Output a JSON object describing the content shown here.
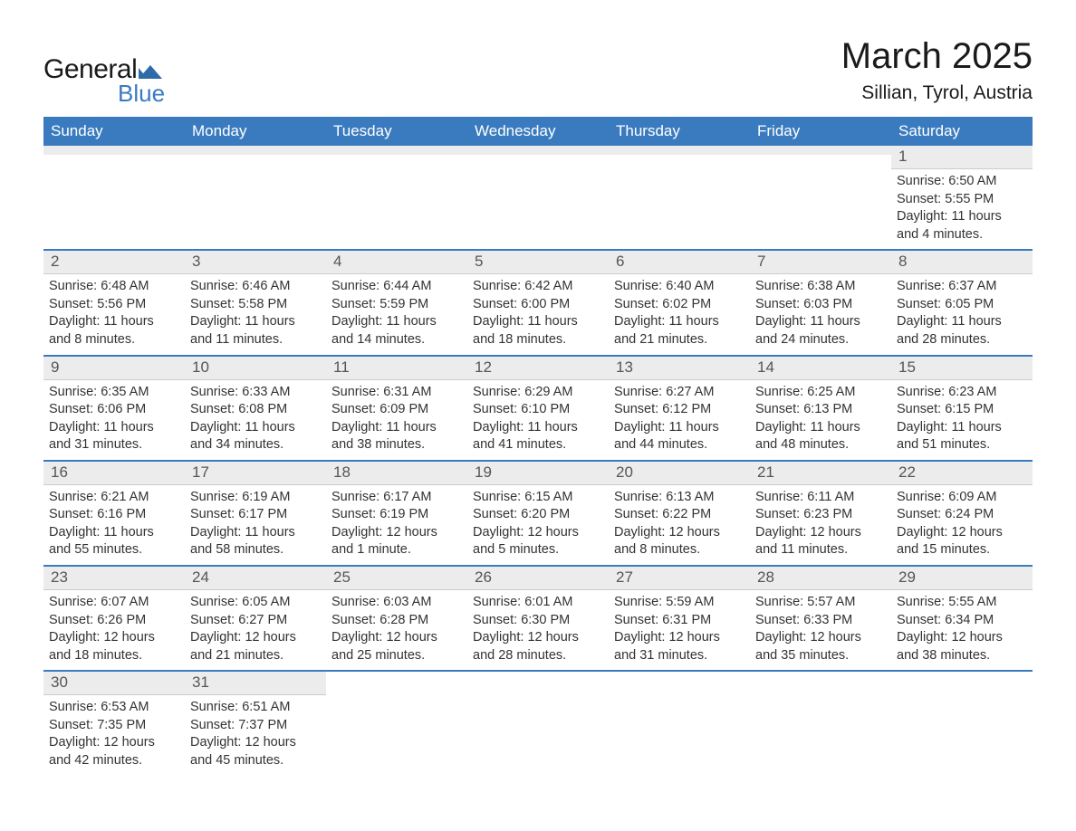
{
  "logo": {
    "text_general": "General",
    "text_blue": "Blue",
    "mark_color": "#2f6aa8"
  },
  "title": "March 2025",
  "location": "Sillian, Tyrol, Austria",
  "colors": {
    "header_bg": "#3a7bbf",
    "header_text": "#ffffff",
    "daynum_bg": "#ececec",
    "daynum_text": "#555555",
    "body_text": "#333333",
    "week_border": "#3a7bbf",
    "page_bg": "#ffffff"
  },
  "typography": {
    "title_fontsize": 40,
    "location_fontsize": 21,
    "weekday_fontsize": 17,
    "daynum_fontsize": 17,
    "body_fontsize": 14.5
  },
  "weekdays": [
    "Sunday",
    "Monday",
    "Tuesday",
    "Wednesday",
    "Thursday",
    "Friday",
    "Saturday"
  ],
  "weeks": [
    [
      null,
      null,
      null,
      null,
      null,
      null,
      {
        "n": "1",
        "sr": "Sunrise: 6:50 AM",
        "ss": "Sunset: 5:55 PM",
        "d1": "Daylight: 11 hours",
        "d2": "and 4 minutes."
      }
    ],
    [
      {
        "n": "2",
        "sr": "Sunrise: 6:48 AM",
        "ss": "Sunset: 5:56 PM",
        "d1": "Daylight: 11 hours",
        "d2": "and 8 minutes."
      },
      {
        "n": "3",
        "sr": "Sunrise: 6:46 AM",
        "ss": "Sunset: 5:58 PM",
        "d1": "Daylight: 11 hours",
        "d2": "and 11 minutes."
      },
      {
        "n": "4",
        "sr": "Sunrise: 6:44 AM",
        "ss": "Sunset: 5:59 PM",
        "d1": "Daylight: 11 hours",
        "d2": "and 14 minutes."
      },
      {
        "n": "5",
        "sr": "Sunrise: 6:42 AM",
        "ss": "Sunset: 6:00 PM",
        "d1": "Daylight: 11 hours",
        "d2": "and 18 minutes."
      },
      {
        "n": "6",
        "sr": "Sunrise: 6:40 AM",
        "ss": "Sunset: 6:02 PM",
        "d1": "Daylight: 11 hours",
        "d2": "and 21 minutes."
      },
      {
        "n": "7",
        "sr": "Sunrise: 6:38 AM",
        "ss": "Sunset: 6:03 PM",
        "d1": "Daylight: 11 hours",
        "d2": "and 24 minutes."
      },
      {
        "n": "8",
        "sr": "Sunrise: 6:37 AM",
        "ss": "Sunset: 6:05 PM",
        "d1": "Daylight: 11 hours",
        "d2": "and 28 minutes."
      }
    ],
    [
      {
        "n": "9",
        "sr": "Sunrise: 6:35 AM",
        "ss": "Sunset: 6:06 PM",
        "d1": "Daylight: 11 hours",
        "d2": "and 31 minutes."
      },
      {
        "n": "10",
        "sr": "Sunrise: 6:33 AM",
        "ss": "Sunset: 6:08 PM",
        "d1": "Daylight: 11 hours",
        "d2": "and 34 minutes."
      },
      {
        "n": "11",
        "sr": "Sunrise: 6:31 AM",
        "ss": "Sunset: 6:09 PM",
        "d1": "Daylight: 11 hours",
        "d2": "and 38 minutes."
      },
      {
        "n": "12",
        "sr": "Sunrise: 6:29 AM",
        "ss": "Sunset: 6:10 PM",
        "d1": "Daylight: 11 hours",
        "d2": "and 41 minutes."
      },
      {
        "n": "13",
        "sr": "Sunrise: 6:27 AM",
        "ss": "Sunset: 6:12 PM",
        "d1": "Daylight: 11 hours",
        "d2": "and 44 minutes."
      },
      {
        "n": "14",
        "sr": "Sunrise: 6:25 AM",
        "ss": "Sunset: 6:13 PM",
        "d1": "Daylight: 11 hours",
        "d2": "and 48 minutes."
      },
      {
        "n": "15",
        "sr": "Sunrise: 6:23 AM",
        "ss": "Sunset: 6:15 PM",
        "d1": "Daylight: 11 hours",
        "d2": "and 51 minutes."
      }
    ],
    [
      {
        "n": "16",
        "sr": "Sunrise: 6:21 AM",
        "ss": "Sunset: 6:16 PM",
        "d1": "Daylight: 11 hours",
        "d2": "and 55 minutes."
      },
      {
        "n": "17",
        "sr": "Sunrise: 6:19 AM",
        "ss": "Sunset: 6:17 PM",
        "d1": "Daylight: 11 hours",
        "d2": "and 58 minutes."
      },
      {
        "n": "18",
        "sr": "Sunrise: 6:17 AM",
        "ss": "Sunset: 6:19 PM",
        "d1": "Daylight: 12 hours",
        "d2": "and 1 minute."
      },
      {
        "n": "19",
        "sr": "Sunrise: 6:15 AM",
        "ss": "Sunset: 6:20 PM",
        "d1": "Daylight: 12 hours",
        "d2": "and 5 minutes."
      },
      {
        "n": "20",
        "sr": "Sunrise: 6:13 AM",
        "ss": "Sunset: 6:22 PM",
        "d1": "Daylight: 12 hours",
        "d2": "and 8 minutes."
      },
      {
        "n": "21",
        "sr": "Sunrise: 6:11 AM",
        "ss": "Sunset: 6:23 PM",
        "d1": "Daylight: 12 hours",
        "d2": "and 11 minutes."
      },
      {
        "n": "22",
        "sr": "Sunrise: 6:09 AM",
        "ss": "Sunset: 6:24 PM",
        "d1": "Daylight: 12 hours",
        "d2": "and 15 minutes."
      }
    ],
    [
      {
        "n": "23",
        "sr": "Sunrise: 6:07 AM",
        "ss": "Sunset: 6:26 PM",
        "d1": "Daylight: 12 hours",
        "d2": "and 18 minutes."
      },
      {
        "n": "24",
        "sr": "Sunrise: 6:05 AM",
        "ss": "Sunset: 6:27 PM",
        "d1": "Daylight: 12 hours",
        "d2": "and 21 minutes."
      },
      {
        "n": "25",
        "sr": "Sunrise: 6:03 AM",
        "ss": "Sunset: 6:28 PM",
        "d1": "Daylight: 12 hours",
        "d2": "and 25 minutes."
      },
      {
        "n": "26",
        "sr": "Sunrise: 6:01 AM",
        "ss": "Sunset: 6:30 PM",
        "d1": "Daylight: 12 hours",
        "d2": "and 28 minutes."
      },
      {
        "n": "27",
        "sr": "Sunrise: 5:59 AM",
        "ss": "Sunset: 6:31 PM",
        "d1": "Daylight: 12 hours",
        "d2": "and 31 minutes."
      },
      {
        "n": "28",
        "sr": "Sunrise: 5:57 AM",
        "ss": "Sunset: 6:33 PM",
        "d1": "Daylight: 12 hours",
        "d2": "and 35 minutes."
      },
      {
        "n": "29",
        "sr": "Sunrise: 5:55 AM",
        "ss": "Sunset: 6:34 PM",
        "d1": "Daylight: 12 hours",
        "d2": "and 38 minutes."
      }
    ],
    [
      {
        "n": "30",
        "sr": "Sunrise: 6:53 AM",
        "ss": "Sunset: 7:35 PM",
        "d1": "Daylight: 12 hours",
        "d2": "and 42 minutes."
      },
      {
        "n": "31",
        "sr": "Sunrise: 6:51 AM",
        "ss": "Sunset: 7:37 PM",
        "d1": "Daylight: 12 hours",
        "d2": "and 45 minutes."
      },
      null,
      null,
      null,
      null,
      null
    ]
  ]
}
